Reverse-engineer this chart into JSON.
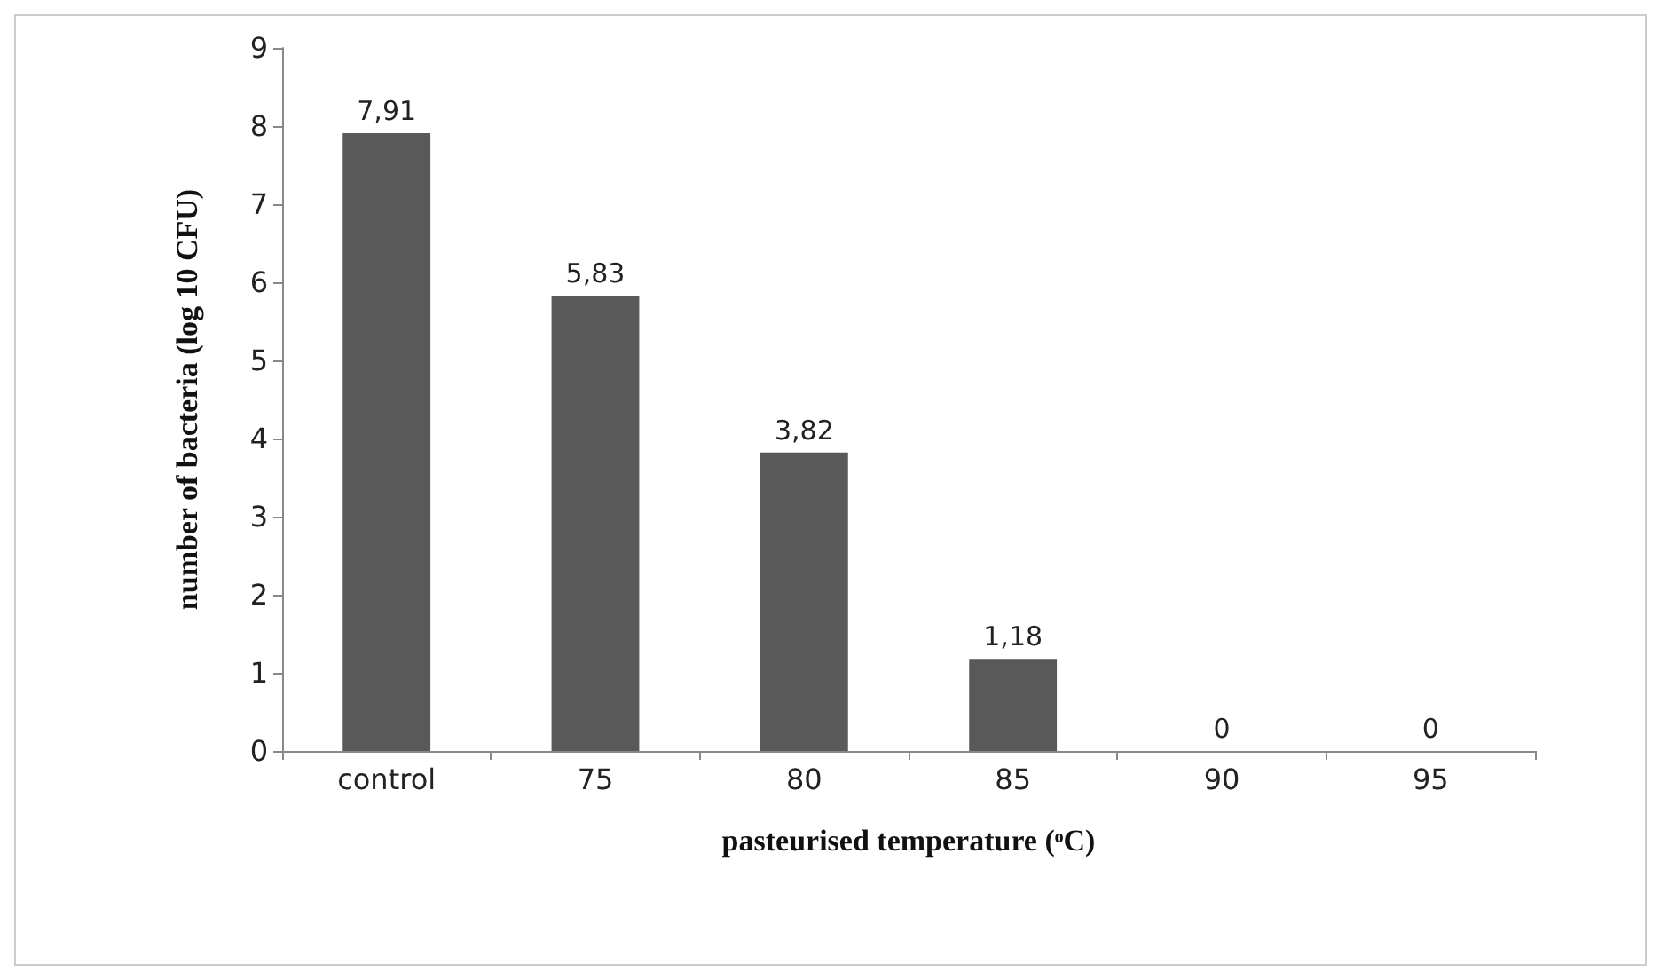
{
  "chart_data": {
    "type": "bar",
    "xlabel": "pasteurised temperature (ᵒC)",
    "ylabel": "number of bacteria (log 10 CFU)",
    "categories": [
      "control",
      "75",
      "80",
      "85",
      "90",
      "95"
    ],
    "values": [
      7.91,
      5.83,
      3.82,
      1.18,
      0,
      0
    ],
    "value_labels": [
      "7,91",
      "5,83",
      "3,82",
      "1,18",
      "0",
      "0"
    ],
    "color": "#595959",
    "ylim": [
      0,
      9
    ],
    "yticks": [
      0,
      1,
      2,
      3,
      4,
      5,
      6,
      7,
      8,
      9
    ],
    "grid": false
  }
}
